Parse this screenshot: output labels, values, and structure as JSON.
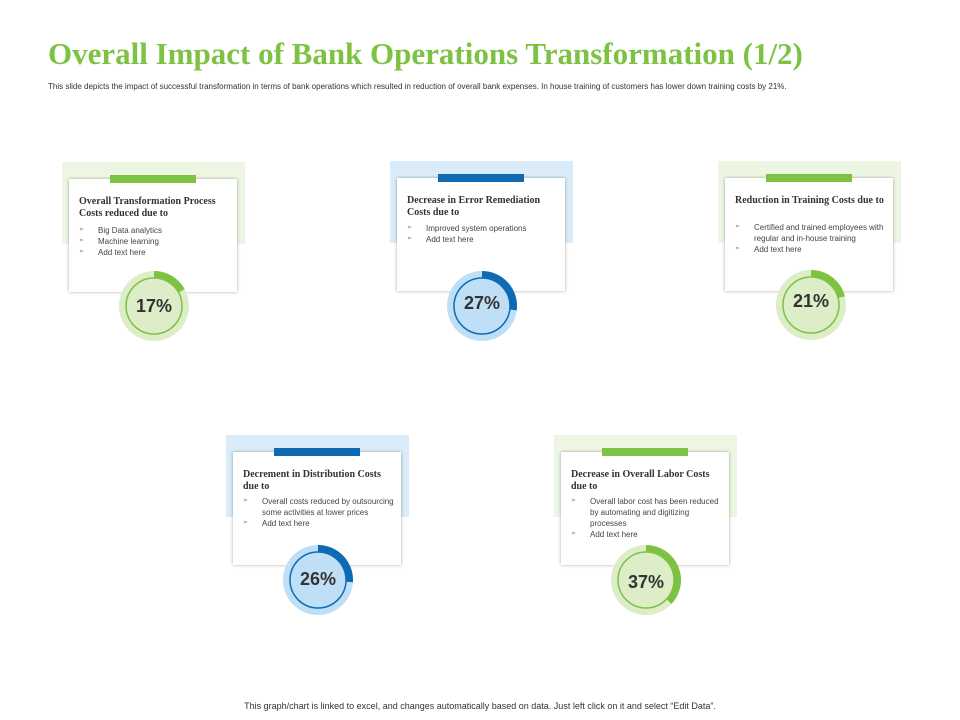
{
  "title": "Overall Impact of Bank Operations Transformation (1/2)",
  "subtitle": "This slide depicts the impact of successful transformation in terms of bank operations which resulted in reduction of overall bank expenses. In house training of customers has lower down training costs by 21%.",
  "footer": "This graph/chart is linked to excel, and changes automatically based on data. Just left click on it and select “Edit Data”.",
  "colors": {
    "green": "#7dc243",
    "green_light": "#dcedc8",
    "blue": "#0f6ab4",
    "blue_light": "#bfdff7"
  },
  "cards": [
    {
      "title": "Overall Transformation Process Costs reduced due to",
      "bullets": [
        "Big Data analytics",
        "Machine learning",
        "Add text here"
      ],
      "theme": "green"
    },
    {
      "title": "Decrease in Error Remediation Costs due to",
      "bullets": [
        "Improved system operations",
        "Add text here"
      ],
      "theme": "blue"
    },
    {
      "title": "Reduction in Training Costs due to",
      "bullets": [
        "Certified and trained employees with regular and in-house training",
        "Add text here"
      ],
      "theme": "green"
    },
    {
      "title": "Decrement in Distribution Costs due to",
      "bullets": [
        "Overall costs reduced by outsourcing some activities at lower prices",
        "Add text here"
      ],
      "theme": "blue"
    },
    {
      "title": "Decrease in Overall Labor Costs due to",
      "bullets": [
        "Overall labor cost has been reduced by automating and digitizing processes",
        "Add text here"
      ],
      "theme": "green"
    }
  ],
  "chart_data": [
    {
      "type": "pie",
      "labels": [
        "17%"
      ],
      "values": [
        17
      ],
      "theme": "green"
    },
    {
      "type": "pie",
      "labels": [
        "27%"
      ],
      "values": [
        27
      ],
      "theme": "blue"
    },
    {
      "type": "pie",
      "labels": [
        "21%"
      ],
      "values": [
        21
      ],
      "theme": "green"
    },
    {
      "type": "pie",
      "labels": [
        "26%"
      ],
      "values": [
        26
      ],
      "theme": "blue"
    },
    {
      "type": "pie",
      "labels": [
        "37%"
      ],
      "values": [
        37
      ],
      "theme": "green"
    }
  ]
}
